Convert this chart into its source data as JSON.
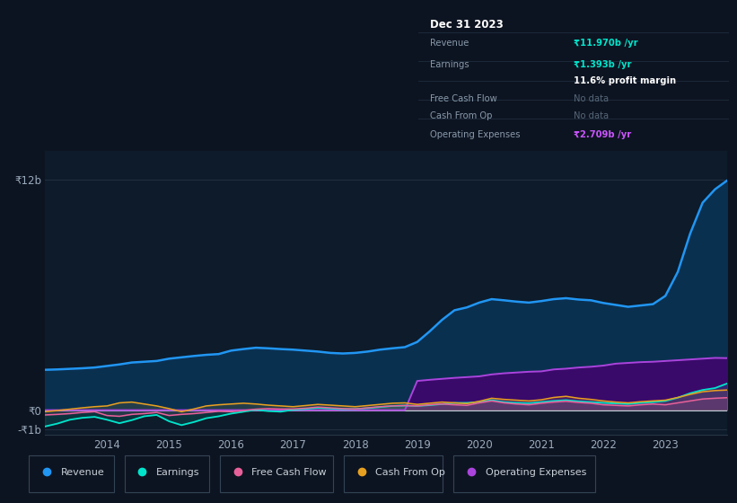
{
  "bg_color": "#0d1421",
  "plot_bg_color": "#0d1b2a",
  "grid_color": "#263545",
  "text_color": "#9aaabb",
  "years": [
    2013.0,
    2013.2,
    2013.4,
    2013.6,
    2013.8,
    2014.0,
    2014.2,
    2014.4,
    2014.6,
    2014.8,
    2015.0,
    2015.2,
    2015.4,
    2015.6,
    2015.8,
    2016.0,
    2016.2,
    2016.4,
    2016.6,
    2016.8,
    2017.0,
    2017.2,
    2017.4,
    2017.6,
    2017.8,
    2018.0,
    2018.2,
    2018.4,
    2018.6,
    2018.8,
    2019.0,
    2019.2,
    2019.4,
    2019.6,
    2019.8,
    2020.0,
    2020.2,
    2020.4,
    2020.6,
    2020.8,
    2021.0,
    2021.2,
    2021.4,
    2021.6,
    2021.8,
    2022.0,
    2022.2,
    2022.4,
    2022.6,
    2022.8,
    2023.0,
    2023.2,
    2023.4,
    2023.6,
    2023.8,
    2024.0
  ],
  "revenue": [
    2.1,
    2.12,
    2.15,
    2.18,
    2.22,
    2.3,
    2.38,
    2.48,
    2.52,
    2.56,
    2.68,
    2.75,
    2.82,
    2.88,
    2.92,
    3.1,
    3.18,
    3.25,
    3.22,
    3.18,
    3.15,
    3.1,
    3.05,
    2.98,
    2.95,
    2.98,
    3.05,
    3.15,
    3.22,
    3.28,
    3.55,
    4.1,
    4.7,
    5.2,
    5.35,
    5.6,
    5.78,
    5.72,
    5.65,
    5.6,
    5.68,
    5.78,
    5.83,
    5.76,
    5.72,
    5.58,
    5.48,
    5.38,
    5.45,
    5.52,
    5.95,
    7.2,
    9.2,
    10.8,
    11.5,
    11.97
  ],
  "earnings": [
    -0.85,
    -0.7,
    -0.5,
    -0.4,
    -0.35,
    -0.5,
    -0.68,
    -0.52,
    -0.32,
    -0.25,
    -0.58,
    -0.78,
    -0.62,
    -0.42,
    -0.32,
    -0.18,
    -0.08,
    0.02,
    -0.05,
    -0.08,
    0.02,
    0.06,
    0.12,
    0.08,
    0.05,
    0.06,
    0.1,
    0.16,
    0.22,
    0.24,
    0.22,
    0.26,
    0.32,
    0.38,
    0.38,
    0.42,
    0.52,
    0.42,
    0.38,
    0.36,
    0.42,
    0.48,
    0.52,
    0.46,
    0.42,
    0.38,
    0.35,
    0.32,
    0.38,
    0.42,
    0.48,
    0.65,
    0.88,
    1.05,
    1.15,
    1.393
  ],
  "free_cash_flow": [
    -0.25,
    -0.22,
    -0.18,
    -0.12,
    -0.08,
    -0.28,
    -0.32,
    -0.22,
    -0.18,
    -0.12,
    -0.28,
    -0.22,
    -0.18,
    -0.12,
    -0.06,
    -0.08,
    -0.02,
    0.05,
    0.08,
    0.06,
    0.06,
    0.1,
    0.16,
    0.12,
    0.08,
    0.06,
    0.12,
    0.18,
    0.22,
    0.24,
    0.22,
    0.28,
    0.32,
    0.28,
    0.25,
    0.38,
    0.48,
    0.38,
    0.32,
    0.28,
    0.36,
    0.42,
    0.46,
    0.4,
    0.36,
    0.28,
    0.25,
    0.22,
    0.28,
    0.32,
    0.28,
    0.38,
    0.48,
    0.58,
    0.62,
    0.65
  ],
  "cash_from_op": [
    -0.08,
    -0.02,
    0.05,
    0.12,
    0.18,
    0.22,
    0.38,
    0.42,
    0.32,
    0.22,
    0.08,
    -0.08,
    0.06,
    0.22,
    0.28,
    0.32,
    0.36,
    0.32,
    0.26,
    0.22,
    0.18,
    0.24,
    0.3,
    0.26,
    0.22,
    0.18,
    0.24,
    0.3,
    0.36,
    0.38,
    0.3,
    0.36,
    0.42,
    0.38,
    0.34,
    0.46,
    0.62,
    0.56,
    0.52,
    0.48,
    0.54,
    0.66,
    0.72,
    0.62,
    0.56,
    0.48,
    0.42,
    0.38,
    0.44,
    0.48,
    0.52,
    0.66,
    0.82,
    0.96,
    1.02,
    1.05
  ],
  "op_expenses": [
    0.0,
    0.0,
    0.0,
    0.0,
    0.0,
    0.0,
    0.0,
    0.0,
    0.0,
    0.0,
    0.0,
    0.0,
    0.0,
    0.0,
    0.0,
    0.0,
    0.0,
    0.0,
    0.0,
    0.0,
    0.0,
    0.0,
    0.0,
    0.0,
    0.0,
    0.0,
    0.0,
    0.0,
    0.0,
    0.0,
    1.52,
    1.58,
    1.63,
    1.68,
    1.72,
    1.76,
    1.86,
    1.92,
    1.96,
    2.0,
    2.02,
    2.12,
    2.16,
    2.22,
    2.26,
    2.32,
    2.42,
    2.46,
    2.5,
    2.52,
    2.56,
    2.6,
    2.64,
    2.68,
    2.72,
    2.709
  ],
  "revenue_color": "#2196f3",
  "earnings_color": "#00e5cc",
  "fcf_color": "#e8609a",
  "cashop_color": "#e8a020",
  "opex_color": "#aa44dd",
  "revenue_fill_color": "#0a3050",
  "opex_fill_color": "#3a0a6a",
  "ylim_min": -1.3,
  "ylim_max": 13.5,
  "y_ticks": [
    -1.0,
    0.0,
    12.0
  ],
  "y_tick_labels": [
    "-₹1b",
    "₹0",
    "₹12b"
  ],
  "x_ticks": [
    2014,
    2015,
    2016,
    2017,
    2018,
    2019,
    2020,
    2021,
    2022,
    2023
  ],
  "legend_labels": [
    "Revenue",
    "Earnings",
    "Free Cash Flow",
    "Cash From Op",
    "Operating Expenses"
  ],
  "legend_colors": [
    "#2196f3",
    "#00e5cc",
    "#e8609a",
    "#e8a020",
    "#aa44dd"
  ],
  "info_box": {
    "date": "Dec 31 2023",
    "revenue_label": "Revenue",
    "revenue_val": "₹11.970b /yr",
    "earnings_label": "Earnings",
    "earnings_val": "₹1.393b /yr",
    "margin_val": "11.6% profit margin",
    "fcf_label": "Free Cash Flow",
    "fcf_val": "No data",
    "cashop_label": "Cash From Op",
    "cashop_val": "No data",
    "opex_label": "Operating Expenses",
    "opex_val": "₹2.709b /yr",
    "val_color_cyan": "#00e5cc",
    "val_color_purple": "#cc55ff",
    "nodata_color": "#556677",
    "label_color": "#8899aa",
    "title_color": "#ffffff",
    "box_bg": "#060d14",
    "box_border": "#334455",
    "divider_color": "#1e2d3d"
  }
}
